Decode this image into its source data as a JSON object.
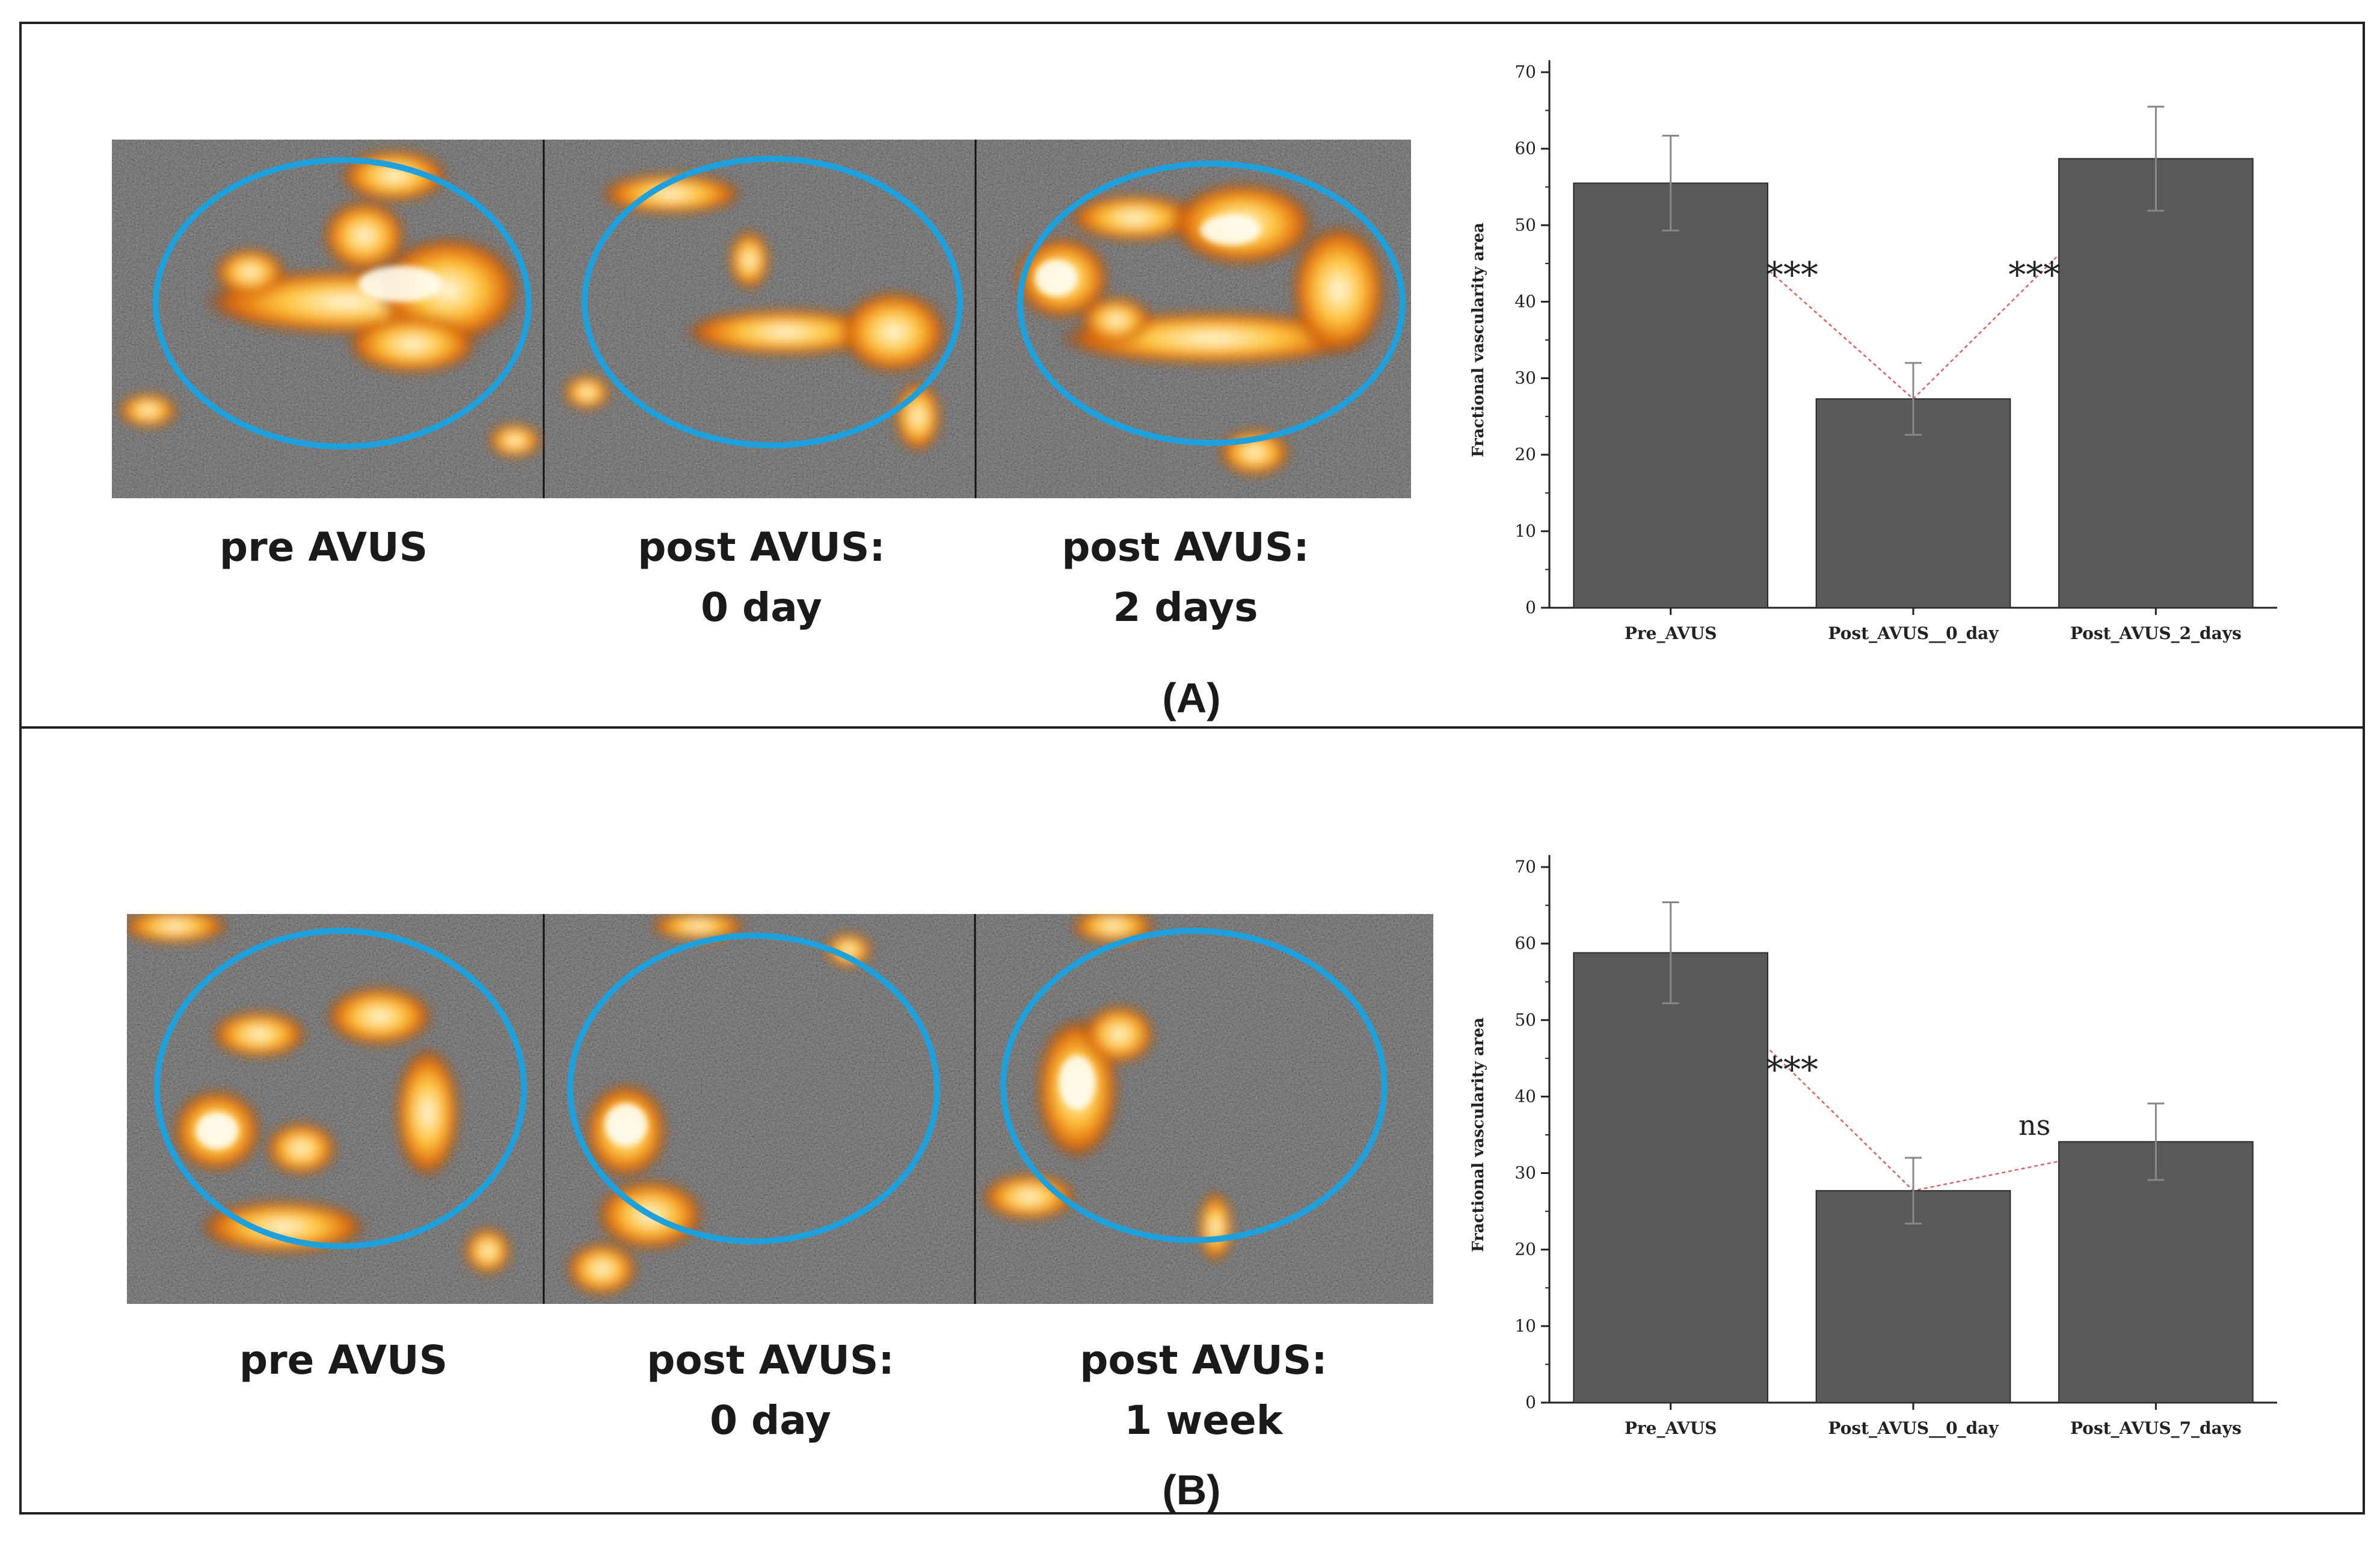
{
  "panels": [
    {
      "label": "(A)",
      "captions": [
        {
          "line1": "pre AVUS",
          "line2": ""
        },
        {
          "line1": "post AVUS:",
          "line2": "0 day"
        },
        {
          "line1": "post AVUS:",
          "line2": "2 days"
        }
      ]
    },
    {
      "label": "(B)",
      "captions": [
        {
          "line1": "pre AVUS",
          "line2": ""
        },
        {
          "line1": "post AVUS:",
          "line2": "0 day"
        },
        {
          "line1": "post AVUS:",
          "line2": "1 week"
        }
      ]
    }
  ],
  "colors": {
    "bar": "#595959",
    "bar_stroke": "#2b2b2b",
    "trend": "#e06060",
    "roi": "#1ea0dc",
    "hot": "#ff9a1a"
  },
  "chart_data": [
    {
      "type": "bar",
      "title": "",
      "xlabel": "",
      "ylabel": "Fractional vascularity area",
      "ylim": [
        0,
        70
      ],
      "yticks": [
        "0",
        "10",
        "20",
        "30",
        "40",
        "50",
        "60",
        "70"
      ],
      "categories": [
        "Pre_AVUS",
        "Post_AVUS__0_day",
        "Post_AVUS_2_days"
      ],
      "values": [
        55.5,
        27.3,
        58.7
      ],
      "error": [
        6.2,
        4.7,
        6.8
      ],
      "annotations": [
        {
          "text": "***",
          "between": [
            0,
            1
          ],
          "y": 44
        },
        {
          "text": "***",
          "between": [
            1,
            2
          ],
          "y": 44
        }
      ]
    },
    {
      "type": "bar",
      "title": "",
      "xlabel": "",
      "ylabel": "Fractional vascularity area",
      "ylim": [
        0,
        70
      ],
      "yticks": [
        "0",
        "10",
        "20",
        "30",
        "40",
        "50",
        "60",
        "70"
      ],
      "categories": [
        "Pre_AVUS",
        "Post_AVUS__0_day",
        "Post_AVUS_7_days"
      ],
      "values": [
        58.8,
        27.7,
        34.1
      ],
      "error": [
        6.6,
        4.3,
        5.0
      ],
      "annotations": [
        {
          "text": "***",
          "between": [
            0,
            1
          ],
          "y": 44
        },
        {
          "text": "ns",
          "between": [
            1,
            2
          ],
          "y": 35
        }
      ]
    }
  ]
}
